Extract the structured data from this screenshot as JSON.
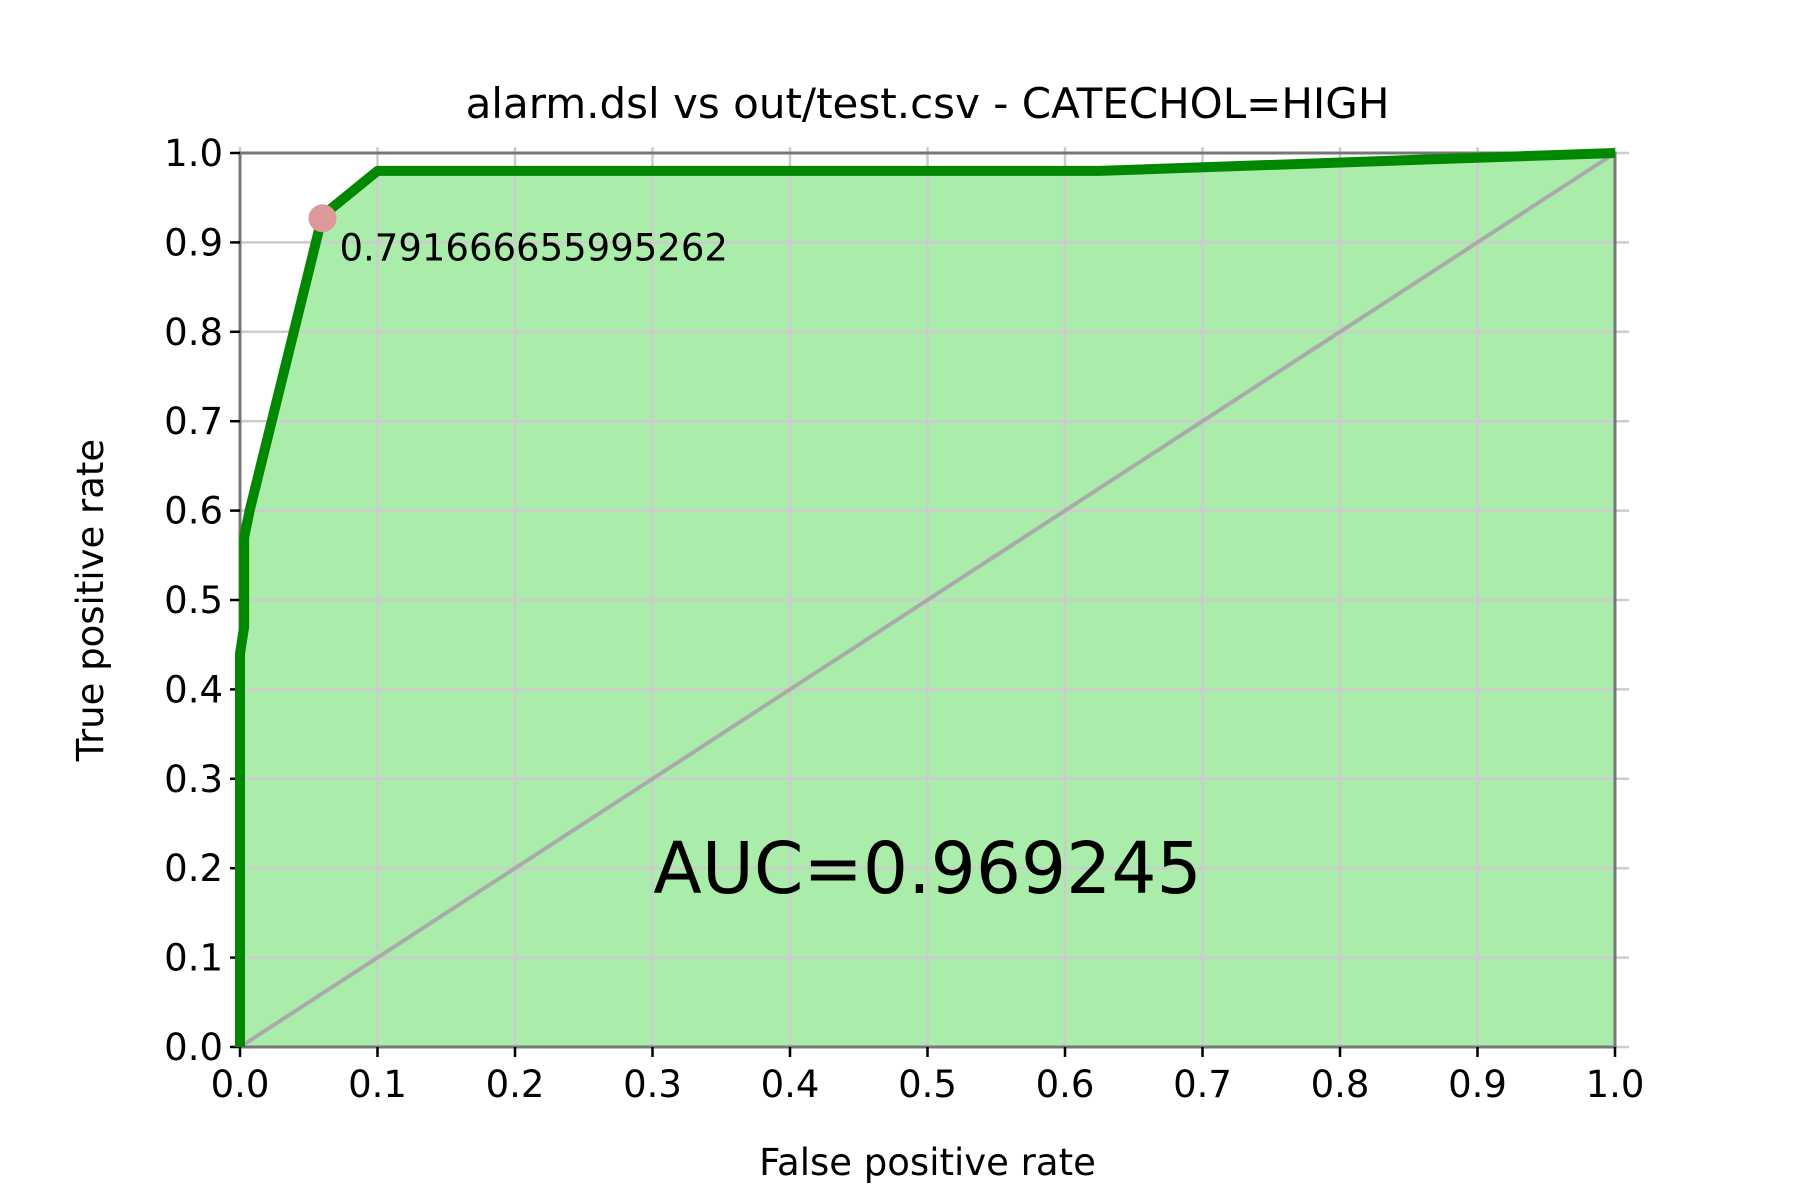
{
  "chart_data": {
    "type": "line",
    "title": "alarm.dsl vs out/test.csv - CATECHOL=HIGH",
    "xlabel": "False positive rate",
    "ylabel": "True positive rate",
    "xlim": [
      0,
      1
    ],
    "ylim": [
      0,
      1
    ],
    "grid": true,
    "x_ticks": [
      "0.0",
      "0.1",
      "0.2",
      "0.3",
      "0.4",
      "0.5",
      "0.6",
      "0.7",
      "0.8",
      "0.9",
      "1.0"
    ],
    "y_ticks": [
      "0.0",
      "0.1",
      "0.2",
      "0.3",
      "0.4",
      "0.5",
      "0.6",
      "0.7",
      "0.8",
      "0.9",
      "1.0"
    ],
    "roc": {
      "x": [
        0.0,
        0.0,
        0.003,
        0.003,
        0.003,
        0.007,
        0.06,
        0.1,
        0.625,
        1.0
      ],
      "y": [
        0.0,
        0.44,
        0.47,
        0.5,
        0.57,
        0.6,
        0.93,
        0.98,
        0.98,
        1.0
      ]
    },
    "diagonal": {
      "x": [
        0,
        1
      ],
      "y": [
        0,
        1
      ]
    },
    "threshold_point": {
      "x": 0.06,
      "y": 0.927,
      "label": "0.791666655995262"
    },
    "auc_text": "AUC=0.969245",
    "colors": {
      "roc_line": "#008800",
      "fill": "#aaedaa",
      "diagonal": "#aaaaaa",
      "grid": "#cccccc",
      "threshold_marker": "#dd9999",
      "threshold_text": "#dd5555",
      "frame": "#777777"
    }
  }
}
